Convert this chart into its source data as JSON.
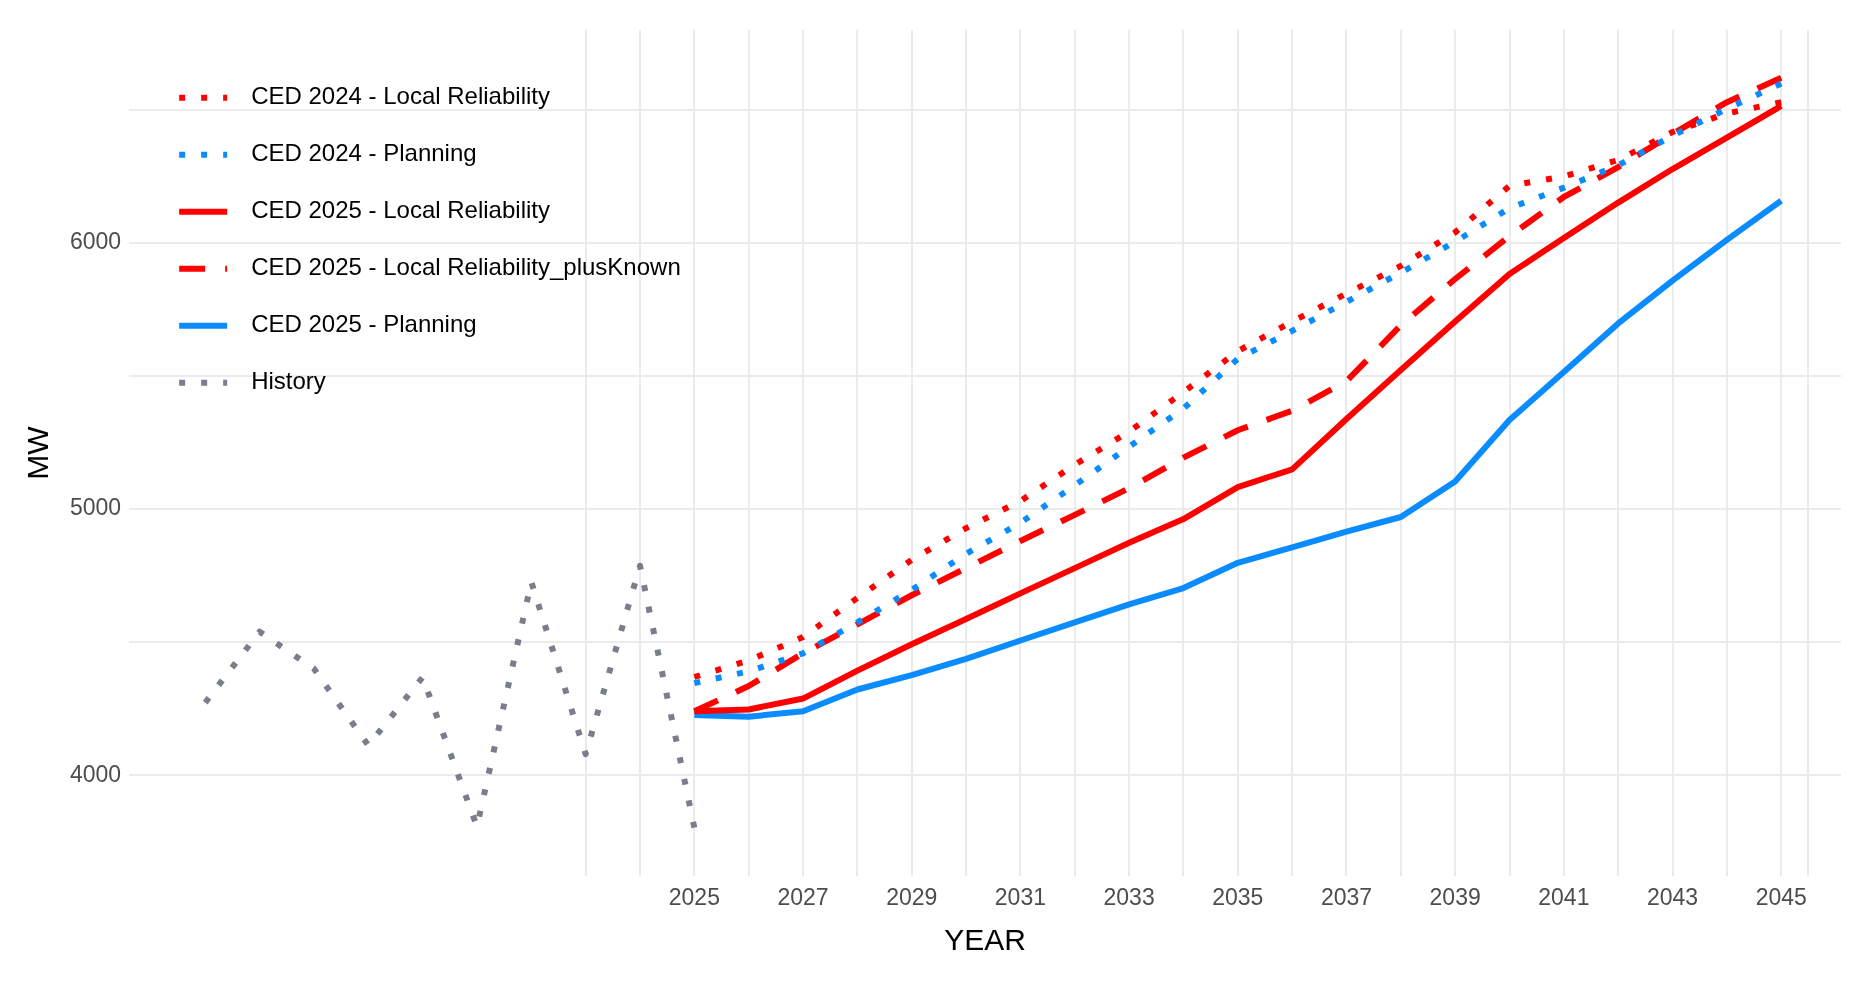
{
  "chart_data": {
    "type": "line",
    "xlabel": "YEAR",
    "ylabel": "MW",
    "xlim": [
      2014.6,
      2046.1
    ],
    "ylim": [
      3620,
      6800
    ],
    "xticks": [
      {
        "value": 2023,
        "label": null
      },
      {
        "value": 2024,
        "label": null
      },
      2025,
      {
        "value": 2026,
        "label": null
      },
      2027,
      {
        "value": 2028,
        "label": null
      },
      2029,
      {
        "value": 2030,
        "label": null
      },
      2031,
      {
        "value": 2032,
        "label": null
      },
      2033,
      {
        "value": 2034,
        "label": null
      },
      2035,
      {
        "value": 2036,
        "label": null
      },
      2037,
      {
        "value": 2038,
        "label": null
      },
      2039,
      {
        "value": 2040,
        "label": null
      },
      2041,
      {
        "value": 2042,
        "label": null
      },
      2043,
      {
        "value": 2044,
        "label": null
      },
      2045,
      {
        "value": 2045.5,
        "label": null
      }
    ],
    "yticks": [
      4000,
      {
        "value": 4500,
        "label": null
      },
      5000,
      {
        "value": 5500,
        "label": null
      },
      6000,
      {
        "value": 6500,
        "label": null
      }
    ],
    "grid": true,
    "legend": "top left",
    "marker": "none",
    "series": [
      {
        "name": "CED 2024 - Local Reliability",
        "color": "#ff0000",
        "line_style": "dotted",
        "x": [
          2025,
          2026,
          2027,
          2028,
          2029,
          2030,
          2031,
          2032,
          2033,
          2034,
          2035,
          2036,
          2037,
          2038,
          2039,
          2040,
          2041,
          2042,
          2043,
          2044,
          2045
        ],
        "values": [
          4369,
          4431,
          4519,
          4666,
          4809,
          4928,
          5030,
          5166,
          5291,
          5439,
          5593,
          5704,
          5809,
          5913,
          6039,
          6214,
          6249,
          6311,
          6416,
          6486,
          6528
        ]
      },
      {
        "name": "CED 2024 - Planning",
        "color": "#0a8cff",
        "line_style": "dotted",
        "x": [
          2025,
          2026,
          2027,
          2028,
          2029,
          2030,
          2031,
          2032,
          2033,
          2034,
          2035,
          2036,
          2037,
          2038,
          2039,
          2040,
          2041,
          2042,
          2043,
          2044,
          2045
        ],
        "values": [
          4346,
          4390,
          4458,
          4574,
          4696,
          4832,
          4948,
          5089,
          5234,
          5377,
          5564,
          5669,
          5778,
          5888,
          6004,
          6130,
          6207,
          6291,
          6402,
          6503,
          6598
        ]
      },
      {
        "name": "CED 2025 - Local Reliability",
        "color": "#ff0000",
        "line_style": "solid",
        "x": [
          2025,
          2026,
          2027,
          2028,
          2029,
          2030,
          2031,
          2032,
          2033,
          2034,
          2035,
          2036,
          2037,
          2038,
          2039,
          2040,
          2041,
          2042,
          2043,
          2044,
          2045
        ],
        "values": [
          4240,
          4247,
          4288,
          4393,
          4492,
          4587,
          4683,
          4778,
          4873,
          4962,
          5082,
          5149,
          5338,
          5522,
          5704,
          5883,
          6018,
          6151,
          6277,
          6395,
          6514
        ]
      },
      {
        "name": "CED 2025 - Local Reliability_plusKnown",
        "color": "#ff0000",
        "line_style": "dashed",
        "x": [
          2025,
          2026,
          2027,
          2028,
          2029,
          2030,
          2031,
          2032,
          2033,
          2034,
          2035,
          2036,
          2037,
          2038,
          2039,
          2040,
          2041,
          2042,
          2043,
          2044,
          2045
        ],
        "values": [
          4240,
          4335,
          4458,
          4567,
          4676,
          4778,
          4880,
          4978,
          5078,
          5193,
          5296,
          5369,
          5480,
          5690,
          5864,
          6025,
          6172,
          6284,
          6409,
          6528,
          6620
        ]
      },
      {
        "name": "CED 2025 - Planning",
        "color": "#0a8cff",
        "line_style": "solid",
        "x": [
          2025,
          2026,
          2027,
          2028,
          2029,
          2030,
          2031,
          2032,
          2033,
          2034,
          2035,
          2036,
          2037,
          2038,
          2039,
          2040,
          2041,
          2042,
          2043,
          2044,
          2045
        ],
        "values": [
          4226,
          4220,
          4240,
          4322,
          4376,
          4437,
          4506,
          4574,
          4642,
          4703,
          4798,
          4856,
          4915,
          4970,
          5103,
          5334,
          5515,
          5697,
          5858,
          6011,
          6158
        ]
      },
      {
        "name": "History",
        "color": "#7a7e8a",
        "line_style": "dotted",
        "x": [
          2016,
          2017,
          2018,
          2019,
          2020,
          2021,
          2022,
          2023,
          2024,
          2025
        ],
        "values": [
          4273,
          4539,
          4400,
          4112,
          4368,
          3807,
          4726,
          4079,
          4787,
          3803
        ]
      }
    ]
  }
}
